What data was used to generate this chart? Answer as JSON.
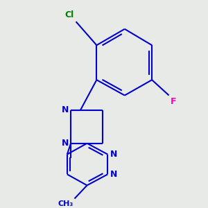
{
  "background_color": "#e8eae8",
  "bond_color": "#0000cc",
  "bond_width": 1.5,
  "cl_color": "#008000",
  "f_color": "#ff00bb",
  "figsize": [
    3.0,
    3.0
  ],
  "dpi": 100,
  "xlim": [
    20,
    280
  ],
  "ylim": [
    20,
    290
  ]
}
